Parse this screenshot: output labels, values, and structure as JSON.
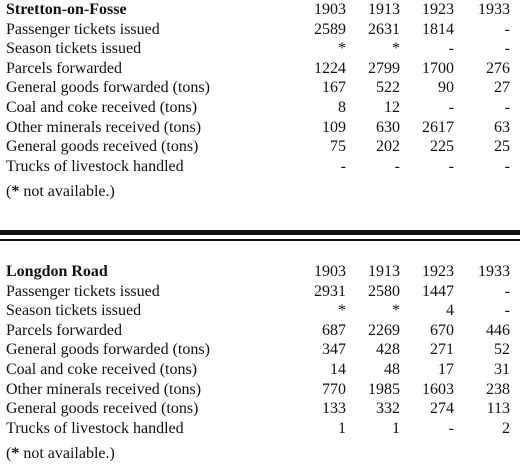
{
  "sections": [
    {
      "title": "Stretton-on-Fosse",
      "years": [
        "1903",
        "1913",
        "1923",
        "1933"
      ],
      "rows": [
        {
          "label": "Passenger tickets issued",
          "values": [
            "2589",
            "2631",
            "1814",
            "-"
          ]
        },
        {
          "label": "Season tickets issued",
          "values": [
            "*",
            "*",
            "-",
            "-"
          ]
        },
        {
          "label": "Parcels forwarded",
          "values": [
            "1224",
            "2799",
            "1700",
            "276"
          ]
        },
        {
          "label": "General goods forwarded (tons)",
          "values": [
            "167",
            "522",
            "90",
            "27"
          ]
        },
        {
          "label": "Coal and coke received (tons)",
          "values": [
            "8",
            "12",
            "-",
            "-"
          ]
        },
        {
          "label": "Other minerals received (tons)",
          "values": [
            "109",
            "630",
            "2617",
            "63"
          ]
        },
        {
          "label": "General goods received (tons)",
          "values": [
            "75",
            "202",
            "225",
            "25"
          ]
        },
        {
          "label": "Trucks of livestock handled",
          "values": [
            "-",
            "-",
            "-",
            "-"
          ]
        }
      ],
      "note_star": "*",
      "note_text": " not available.",
      "note_open": "(",
      "note_close": ")"
    },
    {
      "title": "Longdon Road",
      "years": [
        "1903",
        "1913",
        "1923",
        "1933"
      ],
      "rows": [
        {
          "label": "Passenger tickets issued",
          "values": [
            "2931",
            "2580",
            "1447",
            "-"
          ]
        },
        {
          "label": "Season tickets issued",
          "values": [
            "*",
            "*",
            "4",
            "-"
          ]
        },
        {
          "label": "Parcels forwarded",
          "values": [
            "687",
            "2269",
            "670",
            "446"
          ]
        },
        {
          "label": "General goods forwarded (tons)",
          "values": [
            "347",
            "428",
            "271",
            "52"
          ]
        },
        {
          "label": "Coal and coke received (tons)",
          "values": [
            "14",
            "48",
            "17",
            "31"
          ]
        },
        {
          "label": "Other minerals received (tons)",
          "values": [
            "770",
            "1985",
            "1603",
            "238"
          ]
        },
        {
          "label": "General goods received (tons)",
          "values": [
            "133",
            "332",
            "274",
            "113"
          ]
        },
        {
          "label": "Trucks of livestock handled",
          "values": [
            "1",
            "1",
            "-",
            "2"
          ]
        }
      ],
      "note_star": "*",
      "note_text": " not available.",
      "note_open": "(",
      "note_close": ")"
    }
  ]
}
